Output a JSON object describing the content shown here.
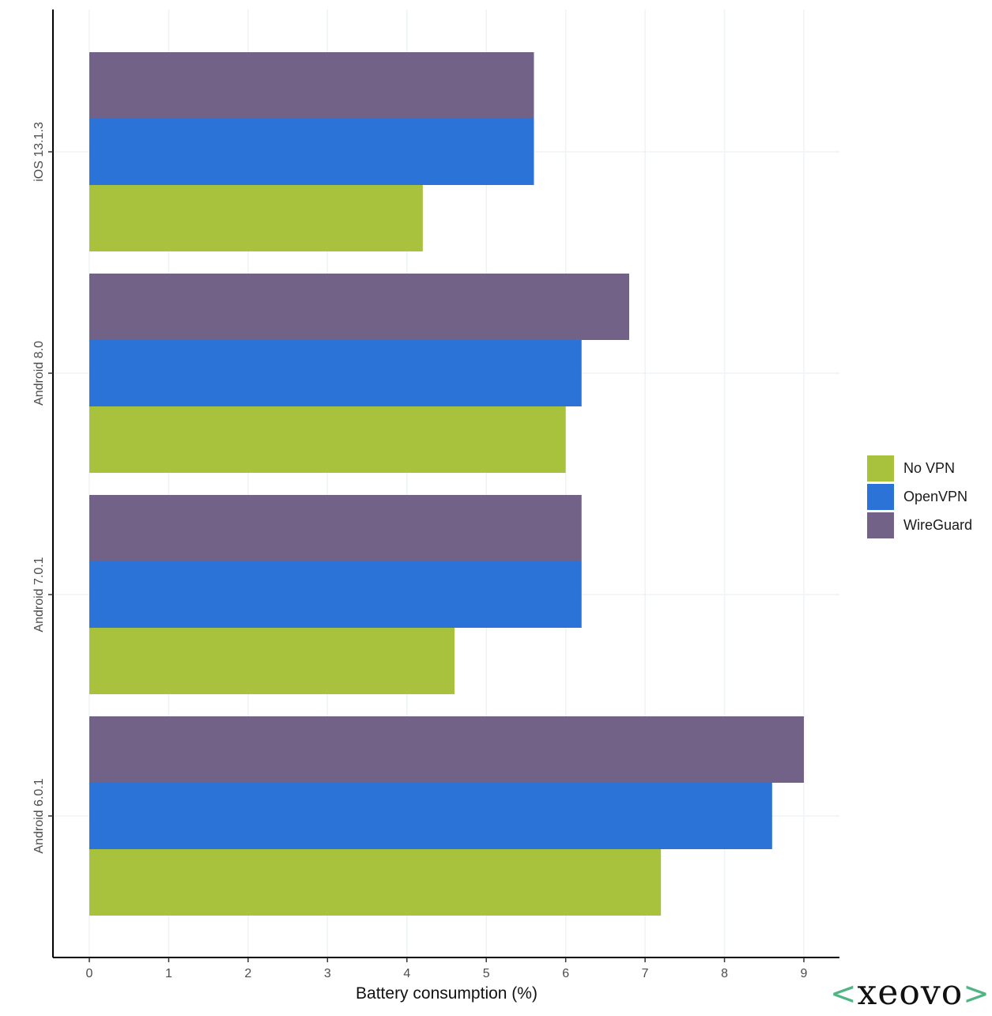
{
  "chart_data": {
    "type": "bar",
    "orientation": "horizontal",
    "categories": [
      "iOS 13.1.3",
      "Android 8.0",
      "Android 7.0.1",
      "Android 6.0.1"
    ],
    "series": [
      {
        "name": "No VPN",
        "color": "#a9c23e",
        "values": [
          4.2,
          6.0,
          4.6,
          7.2
        ]
      },
      {
        "name": "OpenVPN",
        "color": "#2b73d6",
        "values": [
          5.6,
          6.2,
          6.2,
          8.6
        ]
      },
      {
        "name": "WireGuard",
        "color": "#726287",
        "values": [
          5.6,
          6.8,
          6.2,
          9.0
        ]
      }
    ],
    "xlabel": "Battery consumption (%)",
    "ylabel": "",
    "xlim": [
      0,
      9
    ],
    "xticks": [
      "0",
      "1",
      "2",
      "3",
      "4",
      "5",
      "6",
      "7",
      "8",
      "9"
    ],
    "grid": true,
    "legend_position": "right"
  },
  "legend": {
    "items": [
      {
        "label": "No VPN",
        "color": "#a9c23e"
      },
      {
        "label": "OpenVPN",
        "color": "#2b73d6"
      },
      {
        "label": "WireGuard",
        "color": "#726287"
      }
    ]
  },
  "brand": {
    "left": "<",
    "name": "xeovo",
    "right": ">"
  }
}
